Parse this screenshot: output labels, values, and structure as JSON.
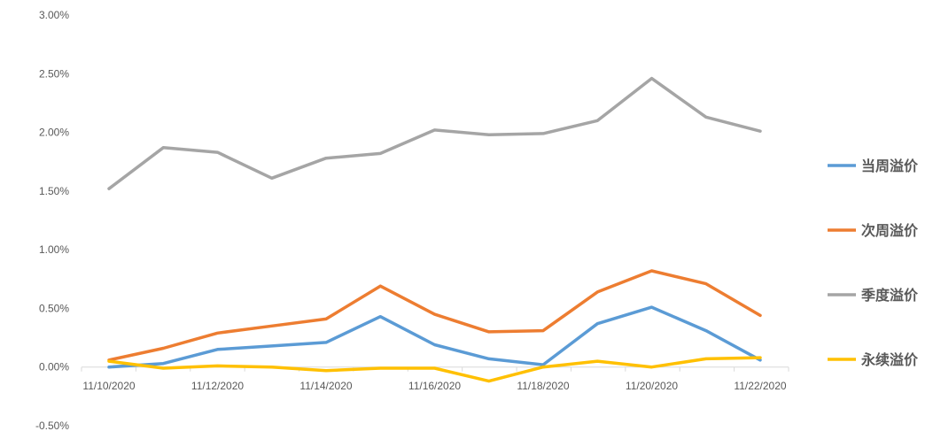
{
  "chart_data": {
    "type": "line",
    "title": "",
    "xlabel": "",
    "ylabel": "",
    "x": [
      "11/10/2020",
      "11/11/2020",
      "11/12/2020",
      "11/13/2020",
      "11/14/2020",
      "11/15/2020",
      "11/16/2020",
      "11/17/2020",
      "11/18/2020",
      "11/19/2020",
      "11/20/2020",
      "11/21/2020",
      "11/22/2020"
    ],
    "x_tick_labels": [
      "11/10/2020",
      "11/12/2020",
      "11/14/2020",
      "11/16/2020",
      "11/18/2020",
      "11/20/2020",
      "11/22/2020"
    ],
    "ylim": [
      -0.005,
      0.03
    ],
    "y_ticks": [
      {
        "value": -0.005,
        "label": "-0.50%"
      },
      {
        "value": 0.0,
        "label": "0.00%"
      },
      {
        "value": 0.005,
        "label": "0.50%"
      },
      {
        "value": 0.01,
        "label": "1.00%"
      },
      {
        "value": 0.015,
        "label": "1.50%"
      },
      {
        "value": 0.02,
        "label": "2.00%"
      },
      {
        "value": 0.025,
        "label": "2.50%"
      },
      {
        "value": 0.03,
        "label": "3.00%"
      }
    ],
    "grid": false,
    "legend_position": "right",
    "series": [
      {
        "name": "当周溢价",
        "color": "#5B9BD5",
        "values": [
          0.0,
          0.0003,
          0.0015,
          0.0018,
          0.0021,
          0.0043,
          0.0019,
          0.0007,
          0.0002,
          0.0037,
          0.0051,
          0.0031,
          0.0006
        ]
      },
      {
        "name": "次周溢价",
        "color": "#ED7D31",
        "values": [
          0.0006,
          0.0016,
          0.0029,
          0.0035,
          0.0041,
          0.0069,
          0.0045,
          0.003,
          0.0031,
          0.0064,
          0.0082,
          0.0071,
          0.0044
        ]
      },
      {
        "name": "季度溢价",
        "color": "#A5A5A5",
        "values": [
          0.0152,
          0.0187,
          0.0183,
          0.0161,
          0.0178,
          0.0182,
          0.0202,
          0.0198,
          0.0199,
          0.021,
          0.0246,
          0.0213,
          0.0201
        ]
      },
      {
        "name": "永续溢价",
        "color": "#FFC000",
        "values": [
          0.0005,
          -0.0001,
          0.0001,
          0.0,
          -0.0003,
          -0.0001,
          -0.0001,
          -0.0012,
          0.0,
          0.0005,
          0.0,
          0.0007,
          0.0008
        ]
      }
    ]
  }
}
